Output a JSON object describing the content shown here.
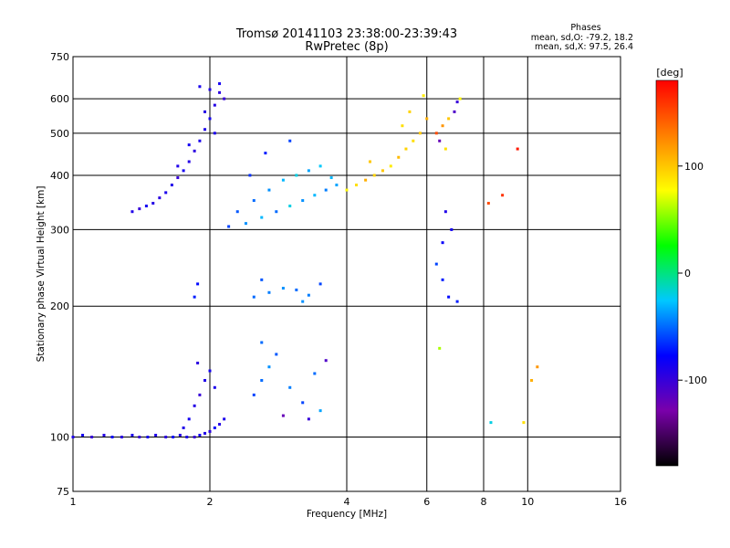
{
  "chart_data": {
    "type": "scatter",
    "title": "Tromsø 20141103 23:38:00-23:39:43",
    "subtitle": "RwPretec (8p)",
    "xlabel": "Frequency [MHz]",
    "ylabel": "Stationary phase Virtual Height [km]",
    "xscale": "log",
    "yscale": "log",
    "xlim": [
      1,
      16
    ],
    "ylim": [
      75,
      750
    ],
    "xticks": [
      1,
      2,
      4,
      6,
      8,
      10,
      16
    ],
    "yticks": [
      75,
      100,
      200,
      300,
      400,
      500,
      600,
      750
    ],
    "grid": true,
    "stats": {
      "heading": "Phases",
      "line_o": "mean, sd,O: -79.2, 18.2",
      "line_x": "mean, sd,X:  97.5, 26.4"
    },
    "colorbar": {
      "label": "[deg]",
      "range": [
        -180,
        180
      ],
      "ticks": [
        100,
        0,
        -100
      ],
      "colors": [
        "#000000",
        "#7a00aa",
        "#0000ff",
        "#00c8ff",
        "#00ff00",
        "#ffff00",
        "#ff8000",
        "#ff0000"
      ]
    },
    "series": [
      {
        "points": [
          [
            1.0,
            100,
            -90
          ],
          [
            1.05,
            101,
            -85
          ],
          [
            1.1,
            100,
            -100
          ],
          [
            1.17,
            101,
            -92
          ],
          [
            1.22,
            100,
            -80
          ],
          [
            1.28,
            100,
            -95
          ],
          [
            1.35,
            101,
            -88
          ],
          [
            1.4,
            100,
            -100
          ],
          [
            1.46,
            100,
            -85
          ],
          [
            1.52,
            101,
            -90
          ],
          [
            1.6,
            100,
            -95
          ],
          [
            1.66,
            100,
            -80
          ],
          [
            1.72,
            101,
            -92
          ],
          [
            1.78,
            100,
            -88
          ],
          [
            1.85,
            100,
            -100
          ],
          [
            1.9,
            101,
            -85
          ],
          [
            1.95,
            102,
            -90
          ],
          [
            2.0,
            103,
            -95
          ],
          [
            2.05,
            105,
            -80
          ],
          [
            2.1,
            107,
            -92
          ],
          [
            2.15,
            110,
            -88
          ],
          [
            1.75,
            105,
            -90
          ],
          [
            1.8,
            110,
            -85
          ],
          [
            1.85,
            118,
            -92
          ],
          [
            1.9,
            125,
            -100
          ],
          [
            1.95,
            135,
            -90
          ],
          [
            2.0,
            142,
            -85
          ],
          [
            1.88,
            148,
            -95
          ],
          [
            2.05,
            130,
            -88
          ]
        ]
      },
      {
        "points": [
          [
            1.35,
            330,
            -90
          ],
          [
            1.4,
            335,
            -100
          ],
          [
            1.45,
            340,
            -85
          ],
          [
            1.5,
            345,
            -92
          ],
          [
            1.55,
            355,
            -95
          ],
          [
            1.6,
            365,
            -88
          ],
          [
            1.65,
            380,
            -90
          ],
          [
            1.7,
            395,
            -100
          ],
          [
            1.75,
            410,
            -85
          ],
          [
            1.8,
            430,
            -92
          ],
          [
            1.85,
            455,
            -95
          ],
          [
            1.9,
            480,
            -88
          ],
          [
            1.95,
            510,
            -90
          ],
          [
            2.0,
            540,
            -85
          ],
          [
            2.05,
            580,
            -92
          ],
          [
            2.1,
            620,
            -95
          ],
          [
            1.9,
            640,
            -88
          ],
          [
            2.0,
            630,
            -90
          ],
          [
            2.15,
            600,
            -100
          ],
          [
            2.1,
            650,
            -85
          ],
          [
            1.7,
            420,
            -90
          ],
          [
            1.8,
            470,
            -85
          ],
          [
            1.95,
            560,
            -92
          ],
          [
            2.05,
            500,
            -88
          ]
        ]
      },
      {
        "points": [
          [
            2.2,
            305,
            -60
          ],
          [
            2.4,
            310,
            -40
          ],
          [
            2.6,
            320,
            -30
          ],
          [
            2.8,
            330,
            -50
          ],
          [
            3.0,
            340,
            -20
          ],
          [
            3.2,
            350,
            -40
          ],
          [
            3.4,
            360,
            -30
          ],
          [
            3.6,
            370,
            -45
          ],
          [
            3.8,
            380,
            -35
          ],
          [
            2.5,
            350,
            -50
          ],
          [
            2.7,
            370,
            -40
          ],
          [
            2.9,
            390,
            -30
          ],
          [
            3.1,
            400,
            -20
          ],
          [
            3.3,
            410,
            -35
          ],
          [
            3.5,
            420,
            -25
          ],
          [
            2.3,
            330,
            -55
          ],
          [
            3.7,
            395,
            -30
          ],
          [
            2.45,
            400,
            -65
          ],
          [
            2.65,
            450,
            -70
          ],
          [
            3.0,
            480,
            -60
          ]
        ]
      },
      {
        "points": [
          [
            4.0,
            370,
            80
          ],
          [
            4.2,
            380,
            90
          ],
          [
            4.4,
            390,
            110
          ],
          [
            4.6,
            400,
            95
          ],
          [
            4.8,
            410,
            100
          ],
          [
            5.0,
            420,
            85
          ],
          [
            5.2,
            440,
            105
          ],
          [
            5.4,
            460,
            95
          ],
          [
            5.6,
            480,
            90
          ],
          [
            5.8,
            500,
            100
          ],
          [
            6.0,
            540,
            110
          ],
          [
            5.5,
            560,
            95
          ],
          [
            5.9,
            610,
            85
          ],
          [
            4.5,
            430,
            100
          ],
          [
            5.3,
            520,
            90
          ]
        ]
      },
      {
        "points": [
          [
            1.85,
            210,
            -70
          ],
          [
            1.88,
            225,
            -75
          ],
          [
            2.5,
            210,
            -50
          ],
          [
            2.7,
            215,
            -45
          ],
          [
            2.9,
            220,
            -40
          ],
          [
            3.1,
            218,
            -50
          ],
          [
            3.3,
            212,
            -45
          ],
          [
            3.5,
            225,
            -60
          ],
          [
            2.6,
            230,
            -55
          ],
          [
            3.2,
            205,
            -40
          ]
        ]
      },
      {
        "points": [
          [
            2.5,
            125,
            -60
          ],
          [
            2.6,
            135,
            -50
          ],
          [
            2.7,
            145,
            -40
          ],
          [
            2.8,
            155,
            -55
          ],
          [
            3.0,
            130,
            -45
          ],
          [
            3.2,
            120,
            -60
          ],
          [
            3.4,
            140,
            -50
          ],
          [
            3.6,
            150,
            -110
          ],
          [
            3.3,
            110,
            -100
          ],
          [
            2.9,
            112,
            -120
          ],
          [
            2.6,
            165,
            -50
          ],
          [
            3.5,
            115,
            -35
          ]
        ]
      },
      {
        "points": [
          [
            6.3,
            500,
            150
          ],
          [
            6.5,
            520,
            120
          ],
          [
            6.7,
            540,
            100
          ],
          [
            6.9,
            560,
            -110
          ],
          [
            7.0,
            590,
            -100
          ],
          [
            6.4,
            480,
            -120
          ],
          [
            6.6,
            460,
            90
          ],
          [
            7.1,
            600,
            80
          ]
        ]
      },
      {
        "points": [
          [
            6.3,
            250,
            -60
          ],
          [
            6.5,
            230,
            -70
          ],
          [
            6.7,
            210,
            -75
          ],
          [
            6.4,
            160,
            60
          ],
          [
            6.5,
            280,
            -80
          ],
          [
            7.0,
            205,
            -70
          ],
          [
            8.2,
            345,
            150
          ],
          [
            8.8,
            360,
            160
          ],
          [
            9.5,
            460,
            170
          ],
          [
            10.5,
            145,
            120
          ],
          [
            8.3,
            108,
            -20
          ],
          [
            9.8,
            108,
            90
          ],
          [
            10.2,
            135,
            110
          ],
          [
            6.6,
            330,
            -90
          ],
          [
            6.8,
            300,
            -85
          ]
        ]
      }
    ]
  }
}
